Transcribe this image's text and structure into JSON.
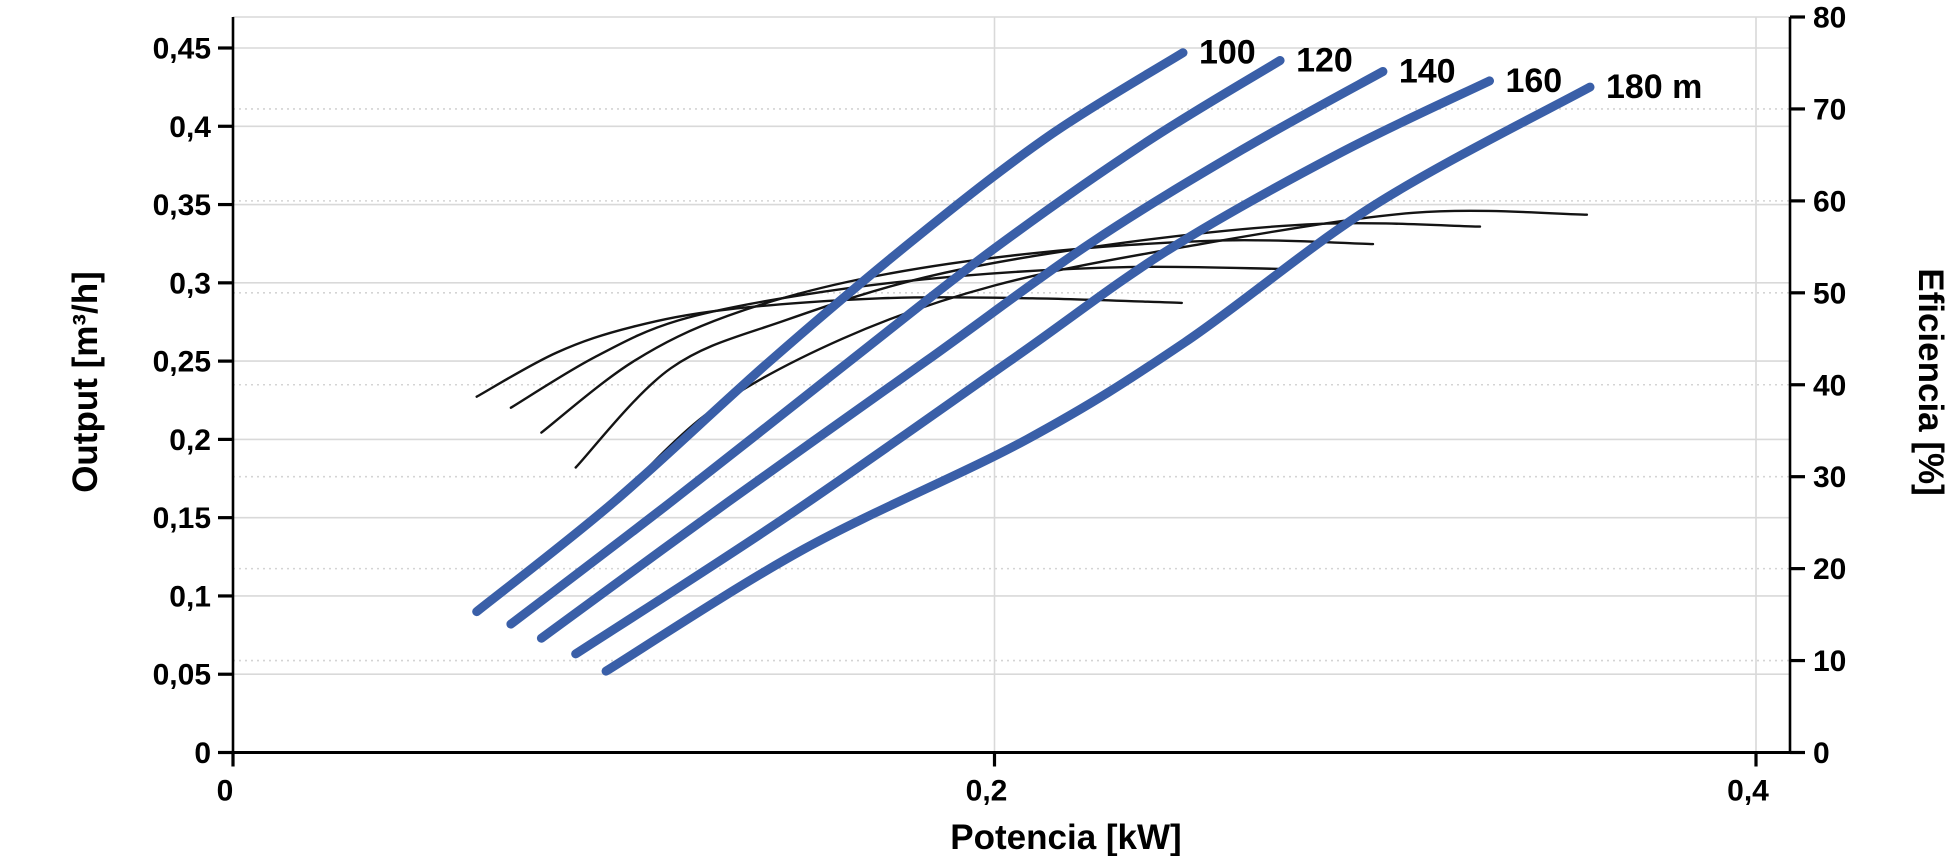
{
  "chart_data": {
    "type": "line",
    "title": "",
    "xlabel": "Potencia [kW]",
    "ylabel_left": "Output [m³/h]",
    "ylabel_right": "Eficiencia [%]",
    "decimal_separator": ",",
    "x_axis": {
      "min": 0,
      "max": 0.409,
      "ticks": [
        0,
        0.2,
        0.4
      ],
      "tick_labels": [
        "0",
        "0,2",
        "0,4"
      ],
      "gridlines_at": [
        0.2,
        0.4
      ]
    },
    "y_axis_left": {
      "min": 0,
      "max": 0.47,
      "ticks": [
        0,
        0.05,
        0.1,
        0.15,
        0.2,
        0.25,
        0.3,
        0.35,
        0.4,
        0.45
      ],
      "tick_labels": [
        "0",
        "0,05",
        "0,1",
        "0,15",
        "0,2",
        "0,25",
        "0,3",
        "0,35",
        "0,4",
        "0,45"
      ],
      "grid": "solid"
    },
    "y_axis_right": {
      "min": 0,
      "max": 80,
      "ticks": [
        0,
        10,
        20,
        30,
        40,
        50,
        60,
        70,
        80
      ],
      "tick_labels": [
        "0",
        "10",
        "20",
        "30",
        "40",
        "50",
        "60",
        "70",
        "80"
      ],
      "grid": "dotted"
    },
    "head_curves": [
      {
        "label": "100",
        "head_m": 100,
        "axis": "left",
        "points_kw_m3h": [
          [
            0.064,
            0.09
          ],
          [
            0.1,
            0.16
          ],
          [
            0.141,
            0.25
          ],
          [
            0.18,
            0.33
          ],
          [
            0.215,
            0.395
          ],
          [
            0.2495,
            0.447
          ]
        ]
      },
      {
        "label": "120",
        "head_m": 120,
        "axis": "left",
        "points_kw_m3h": [
          [
            0.073,
            0.082
          ],
          [
            0.115,
            0.16
          ],
          [
            0.162,
            0.25
          ],
          [
            0.2,
            0.322
          ],
          [
            0.24,
            0.39
          ],
          [
            0.275,
            0.442
          ]
        ]
      },
      {
        "label": "140",
        "head_m": 140,
        "axis": "left",
        "points_kw_m3h": [
          [
            0.081,
            0.073
          ],
          [
            0.13,
            0.16
          ],
          [
            0.182,
            0.25
          ],
          [
            0.225,
            0.325
          ],
          [
            0.265,
            0.385
          ],
          [
            0.302,
            0.435
          ]
        ]
      },
      {
        "label": "160",
        "head_m": 160,
        "axis": "left",
        "points_kw_m3h": [
          [
            0.09,
            0.063
          ],
          [
            0.145,
            0.15
          ],
          [
            0.204,
            0.25
          ],
          [
            0.245,
            0.32
          ],
          [
            0.29,
            0.382
          ],
          [
            0.33,
            0.429
          ]
        ]
      },
      {
        "label": "180 m",
        "head_m": 180,
        "axis": "left",
        "points_kw_m3h": [
          [
            0.098,
            0.052
          ],
          [
            0.15,
            0.13
          ],
          [
            0.2085,
            0.2
          ],
          [
            0.25,
            0.262
          ],
          [
            0.3,
            0.35
          ],
          [
            0.3564,
            0.425
          ]
        ]
      }
    ],
    "efficiency_curves": [
      {
        "head_m": 100,
        "axis": "right",
        "points_kw_pct": [
          [
            0.064,
            38.7
          ],
          [
            0.085,
            43.5
          ],
          [
            0.105,
            46.3
          ],
          [
            0.13,
            48.2
          ],
          [
            0.17,
            49.4
          ],
          [
            0.21,
            49.4
          ],
          [
            0.2492,
            48.9
          ]
        ]
      },
      {
        "head_m": 120,
        "axis": "right",
        "points_kw_pct": [
          [
            0.073,
            37.5
          ],
          [
            0.095,
            43.0
          ],
          [
            0.117,
            47.0
          ],
          [
            0.15,
            49.8
          ],
          [
            0.19,
            51.8
          ],
          [
            0.235,
            52.8
          ],
          [
            0.2747,
            52.6
          ]
        ]
      },
      {
        "head_m": 140,
        "axis": "right",
        "points_kw_pct": [
          [
            0.081,
            34.8
          ],
          [
            0.105,
            42.5
          ],
          [
            0.13,
            47.5
          ],
          [
            0.165,
            51.5
          ],
          [
            0.21,
            54.3
          ],
          [
            0.26,
            55.7
          ],
          [
            0.2994,
            55.3
          ]
        ]
      },
      {
        "head_m": 160,
        "axis": "right",
        "points_kw_pct": [
          [
            0.09,
            31.0
          ],
          [
            0.115,
            41.8
          ],
          [
            0.145,
            47.0
          ],
          [
            0.185,
            52.0
          ],
          [
            0.235,
            55.5
          ],
          [
            0.285,
            57.5
          ],
          [
            0.3275,
            57.2
          ]
        ]
      },
      {
        "head_m": 180,
        "axis": "right",
        "points_kw_pct": [
          [
            0.098,
            26.2
          ],
          [
            0.125,
            37.0
          ],
          [
            0.16,
            45.0
          ],
          [
            0.2,
            50.8
          ],
          [
            0.25,
            55.0
          ],
          [
            0.31,
            58.7
          ],
          [
            0.3556,
            58.5
          ]
        ]
      }
    ],
    "colors": {
      "head_curve": "#3A5FA8",
      "efficiency_curve": "#141414",
      "grid_solid": "#D9D9D9",
      "grid_dotted": "#D4D4D4",
      "axis": "#000000",
      "background": "#FFFFFF",
      "text": "#000000"
    },
    "legend": "none"
  }
}
